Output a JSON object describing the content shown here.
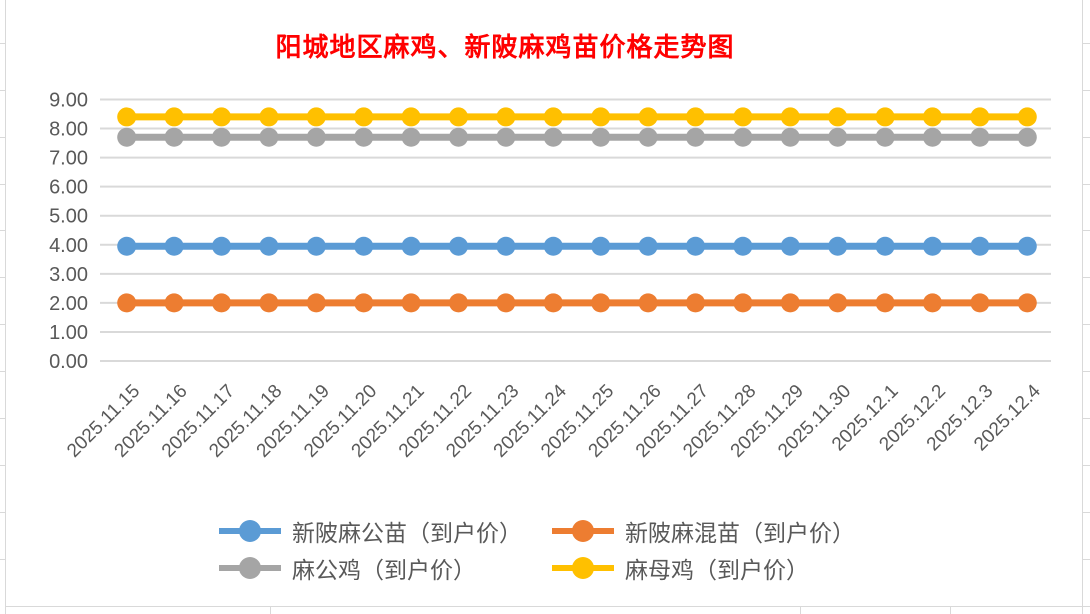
{
  "title": {
    "text": "阳城地区麻鸡、新陂麻鸡苗价格走势图",
    "color": "#FF0000"
  },
  "chart_data": {
    "type": "line",
    "title": "阳城地区麻鸡、新陂麻鸡苗价格走势图",
    "categories": [
      "2025.11.15",
      "2025.11.16",
      "2025.11.17",
      "2025.11.18",
      "2025.11.19",
      "2025.11.20",
      "2025.11.21",
      "2025.11.22",
      "2025.11.23",
      "2025.11.24",
      "2025.11.25",
      "2025.11.26",
      "2025.11.27",
      "2025.11.28",
      "2025.11.29",
      "2025.11.30",
      "2025.12.1",
      "2025.12.2",
      "2025.12.3",
      "2025.12.4"
    ],
    "series": [
      {
        "name": "新陂麻公苗（到户价）",
        "color": "#5B9BD5",
        "values": [
          3.95,
          3.95,
          3.95,
          3.95,
          3.95,
          3.95,
          3.95,
          3.95,
          3.95,
          3.95,
          3.95,
          3.95,
          3.95,
          3.95,
          3.95,
          3.95,
          3.95,
          3.95,
          3.95,
          3.95
        ]
      },
      {
        "name": "新陂麻混苗（到户价）",
        "color": "#ED7D31",
        "values": [
          2.0,
          2.0,
          2.0,
          2.0,
          2.0,
          2.0,
          2.0,
          2.0,
          2.0,
          2.0,
          2.0,
          2.0,
          2.0,
          2.0,
          2.0,
          2.0,
          2.0,
          2.0,
          2.0,
          2.0
        ]
      },
      {
        "name": "麻公鸡（到户价）",
        "color": "#A5A5A5",
        "values": [
          7.7,
          7.7,
          7.7,
          7.7,
          7.7,
          7.7,
          7.7,
          7.7,
          7.7,
          7.7,
          7.7,
          7.7,
          7.7,
          7.7,
          7.7,
          7.7,
          7.7,
          7.7,
          7.7,
          7.7
        ]
      },
      {
        "name": "麻母鸡（到户价）",
        "color": "#FFC000",
        "values": [
          8.4,
          8.4,
          8.4,
          8.4,
          8.4,
          8.4,
          8.4,
          8.4,
          8.4,
          8.4,
          8.4,
          8.4,
          8.4,
          8.4,
          8.4,
          8.4,
          8.4,
          8.4,
          8.4,
          8.4
        ]
      }
    ],
    "xlabel": "",
    "ylabel": "",
    "ylim": [
      0,
      9
    ],
    "ytick_step": 1,
    "ytick_labels": [
      "0.00",
      "1.00",
      "2.00",
      "3.00",
      "4.00",
      "5.00",
      "6.00",
      "7.00",
      "8.00",
      "9.00"
    ],
    "grid": true,
    "legend_position": "bottom",
    "axis_text_color": "#595959",
    "gridline_color": "#D9D9D9"
  }
}
